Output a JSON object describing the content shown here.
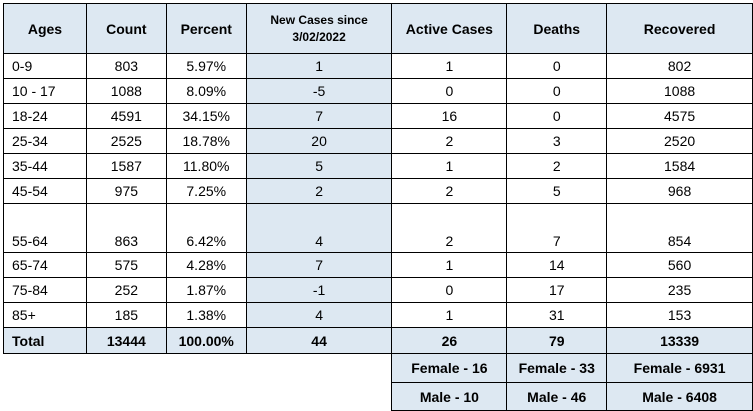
{
  "headers": {
    "ages": "Ages",
    "count": "Count",
    "percent": "Percent",
    "new_cases_line1": "New Cases since",
    "new_cases_line2": "3/02/2022",
    "active": "Active Cases",
    "deaths": "Deaths",
    "recovered": "Recovered"
  },
  "rows": [
    {
      "ages": "0-9",
      "count": "803",
      "percent": "5.97%",
      "new": "1",
      "active": "1",
      "deaths": "0",
      "recovered": "802"
    },
    {
      "ages": "10 - 17",
      "count": "1088",
      "percent": "8.09%",
      "new": "-5",
      "active": "0",
      "deaths": "0",
      "recovered": "1088"
    },
    {
      "ages": "18-24",
      "count": "4591",
      "percent": "34.15%",
      "new": "7",
      "active": "16",
      "deaths": "0",
      "recovered": "4575"
    },
    {
      "ages": "25-34",
      "count": "2525",
      "percent": "18.78%",
      "new": "20",
      "active": "2",
      "deaths": "3",
      "recovered": "2520"
    },
    {
      "ages": "35-44",
      "count": "1587",
      "percent": "11.80%",
      "new": "5",
      "active": "1",
      "deaths": "2",
      "recovered": "1584"
    },
    {
      "ages": "45-54",
      "count": "975",
      "percent": "7.25%",
      "new": "2",
      "active": "2",
      "deaths": "5",
      "recovered": "968"
    },
    {
      "ages": "55-64",
      "count": "863",
      "percent": "6.42%",
      "new": "4",
      "active": "2",
      "deaths": "7",
      "recovered": "854"
    },
    {
      "ages": "65-74",
      "count": "575",
      "percent": "4.28%",
      "new": "7",
      "active": "1",
      "deaths": "14",
      "recovered": "560"
    },
    {
      "ages": "75-84",
      "count": "252",
      "percent": "1.87%",
      "new": "-1",
      "active": "0",
      "deaths": "17",
      "recovered": "235"
    },
    {
      "ages": "85+",
      "count": "185",
      "percent": "1.38%",
      "new": "4",
      "active": "1",
      "deaths": "31",
      "recovered": "153"
    }
  ],
  "total": {
    "ages": "Total",
    "count": "13444",
    "percent": "100.00%",
    "new": "44",
    "active": "26",
    "deaths": "79",
    "recovered": "13339"
  },
  "female": {
    "active": "Female - 16",
    "deaths": "Female - 33",
    "recovered": "Female - 6931"
  },
  "male": {
    "active": "Male - 10",
    "deaths": "Male - 46",
    "recovered": "Male - 6408"
  }
}
